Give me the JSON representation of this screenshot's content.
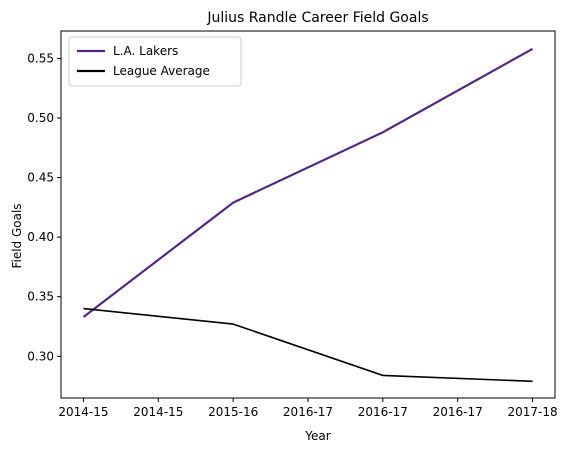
{
  "chart_data": {
    "type": "line",
    "title": "Julius Randle Career Field Goals",
    "xlabel": "Year",
    "ylabel": "Field Goals",
    "x": [
      0,
      1,
      2,
      3
    ],
    "x_tick_positions": [
      0,
      0.5,
      1,
      1.5,
      2,
      2.5,
      3
    ],
    "x_tick_labels": [
      "2014-15",
      "2014-15",
      "2015-16",
      "2016-17",
      "2016-17",
      "2016-17",
      "2017-18"
    ],
    "y_ticks": [
      0.3,
      0.35,
      0.4,
      0.45,
      0.5,
      0.55
    ],
    "y_tick_labels": [
      "0.30",
      "0.35",
      "0.40",
      "0.45",
      "0.50",
      "0.55"
    ],
    "xlim": [
      -0.15,
      3.15
    ],
    "ylim": [
      0.265,
      0.573
    ],
    "grid": false,
    "legend_position": "top-left",
    "series": [
      {
        "name": "L.A. Lakers",
        "color": "#552583",
        "values": [
          0.333,
          0.429,
          0.488,
          0.558
        ]
      },
      {
        "name": "League Average",
        "color": "#000000",
        "values": [
          0.34,
          0.327,
          0.284,
          0.279
        ]
      }
    ]
  }
}
